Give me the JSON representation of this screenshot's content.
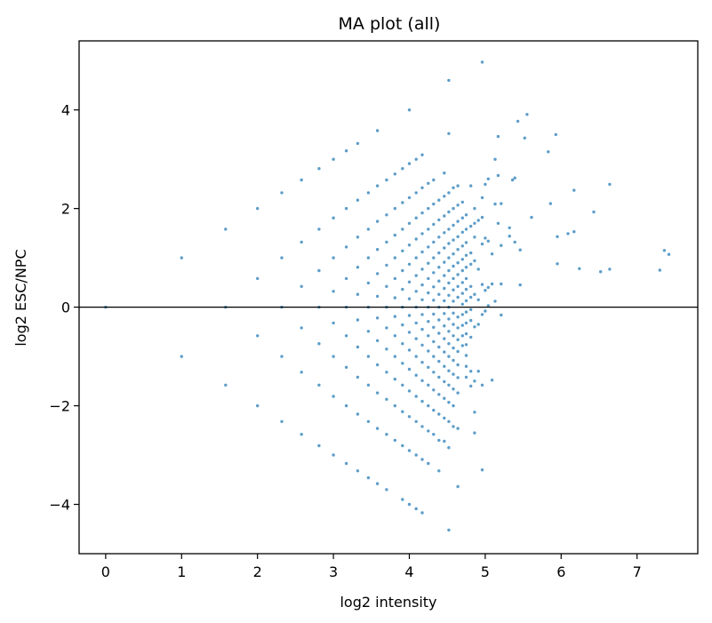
{
  "chart_data": {
    "type": "scatter",
    "title": "MA plot (all)",
    "xlabel": "log2 intensity",
    "ylabel": "log2 ESC/NPC",
    "xlim": [
      -0.35,
      7.8
    ],
    "ylim": [
      -5.0,
      5.4
    ],
    "xticks": [
      0,
      1,
      2,
      3,
      4,
      5,
      6,
      7
    ],
    "yticks": [
      -4,
      -2,
      0,
      2,
      4
    ],
    "xtick_labels": [
      "0",
      "1",
      "2",
      "3",
      "4",
      "5",
      "6",
      "7"
    ],
    "ytick_labels": [
      "−4",
      "−2",
      "0",
      "2",
      "4"
    ],
    "reference_line": {
      "y": 0,
      "color": "#000000"
    },
    "marker_color": "#1f77b4",
    "grid": false,
    "legend": "none",
    "points": [
      [
        0.0,
        0.0
      ],
      [
        1.0,
        1.0
      ],
      [
        1.0,
        -1.0
      ],
      [
        1.58,
        1.58
      ],
      [
        1.58,
        0.0
      ],
      [
        1.58,
        -1.58
      ],
      [
        2.0,
        2.0
      ],
      [
        2.0,
        0.58
      ],
      [
        2.0,
        -0.58
      ],
      [
        2.0,
        -2.0
      ],
      [
        2.32,
        2.32
      ],
      [
        2.32,
        1.0
      ],
      [
        2.32,
        0.0
      ],
      [
        2.32,
        -1.0
      ],
      [
        2.32,
        -2.32
      ],
      [
        2.58,
        2.58
      ],
      [
        2.58,
        1.32
      ],
      [
        2.58,
        0.42
      ],
      [
        2.58,
        -0.42
      ],
      [
        2.58,
        -1.32
      ],
      [
        2.58,
        -2.58
      ],
      [
        2.81,
        2.81
      ],
      [
        2.81,
        1.58
      ],
      [
        2.81,
        0.74
      ],
      [
        2.81,
        0.0
      ],
      [
        2.81,
        -0.74
      ],
      [
        2.81,
        -1.58
      ],
      [
        2.81,
        -2.81
      ],
      [
        3.0,
        3.0
      ],
      [
        3.0,
        1.81
      ],
      [
        3.0,
        1.0
      ],
      [
        3.0,
        0.32
      ],
      [
        3.0,
        -0.32
      ],
      [
        3.0,
        -1.0
      ],
      [
        3.0,
        -1.81
      ],
      [
        3.0,
        -3.0
      ],
      [
        3.17,
        3.17
      ],
      [
        3.17,
        2.0
      ],
      [
        3.17,
        1.22
      ],
      [
        3.17,
        0.58
      ],
      [
        3.17,
        0.0
      ],
      [
        3.17,
        -0.58
      ],
      [
        3.17,
        -1.22
      ],
      [
        3.17,
        -2.0
      ],
      [
        3.17,
        -3.17
      ],
      [
        3.32,
        3.32
      ],
      [
        3.32,
        2.17
      ],
      [
        3.32,
        1.42
      ],
      [
        3.32,
        0.81
      ],
      [
        3.32,
        0.26
      ],
      [
        3.32,
        -0.26
      ],
      [
        3.32,
        -0.81
      ],
      [
        3.32,
        -1.42
      ],
      [
        3.32,
        -2.17
      ],
      [
        3.32,
        -3.32
      ],
      [
        3.46,
        2.32
      ],
      [
        3.46,
        1.58
      ],
      [
        3.46,
        1.0
      ],
      [
        3.46,
        0.49
      ],
      [
        3.46,
        0.0
      ],
      [
        3.46,
        -0.49
      ],
      [
        3.46,
        -1.0
      ],
      [
        3.46,
        -1.58
      ],
      [
        3.46,
        -2.32
      ],
      [
        3.46,
        -3.46
      ],
      [
        3.58,
        3.58
      ],
      [
        3.58,
        2.46
      ],
      [
        3.58,
        1.74
      ],
      [
        3.58,
        1.17
      ],
      [
        3.58,
        0.68
      ],
      [
        3.58,
        0.22
      ],
      [
        3.58,
        -0.22
      ],
      [
        3.58,
        -0.68
      ],
      [
        3.58,
        -1.17
      ],
      [
        3.58,
        -1.74
      ],
      [
        3.58,
        -2.46
      ],
      [
        3.58,
        -3.58
      ],
      [
        3.7,
        2.58
      ],
      [
        3.7,
        1.87
      ],
      [
        3.7,
        1.32
      ],
      [
        3.7,
        0.85
      ],
      [
        3.7,
        0.42
      ],
      [
        3.7,
        0.0
      ],
      [
        3.7,
        -0.42
      ],
      [
        3.7,
        -0.85
      ],
      [
        3.7,
        -1.32
      ],
      [
        3.7,
        -1.87
      ],
      [
        3.7,
        -2.58
      ],
      [
        3.7,
        -3.7
      ],
      [
        3.81,
        2.7
      ],
      [
        3.81,
        2.0
      ],
      [
        3.81,
        1.46
      ],
      [
        3.81,
        1.0
      ],
      [
        3.81,
        0.58
      ],
      [
        3.81,
        0.19
      ],
      [
        3.81,
        -0.19
      ],
      [
        3.81,
        -0.58
      ],
      [
        3.81,
        -1.0
      ],
      [
        3.81,
        -1.46
      ],
      [
        3.81,
        -2.0
      ],
      [
        3.81,
        -2.7
      ],
      [
        3.91,
        2.81
      ],
      [
        3.91,
        2.12
      ],
      [
        3.91,
        1.58
      ],
      [
        3.91,
        1.14
      ],
      [
        3.91,
        0.74
      ],
      [
        3.91,
        0.36
      ],
      [
        3.91,
        0.0
      ],
      [
        3.91,
        -0.36
      ],
      [
        3.91,
        -0.74
      ],
      [
        3.91,
        -1.14
      ],
      [
        3.91,
        -1.58
      ],
      [
        3.91,
        -2.12
      ],
      [
        3.91,
        -2.81
      ],
      [
        3.91,
        -3.9
      ],
      [
        4.0,
        4.0
      ],
      [
        4.0,
        2.91
      ],
      [
        4.0,
        2.22
      ],
      [
        4.0,
        1.7
      ],
      [
        4.0,
        1.26
      ],
      [
        4.0,
        0.87
      ],
      [
        4.0,
        0.51
      ],
      [
        4.0,
        0.17
      ],
      [
        4.0,
        -0.17
      ],
      [
        4.0,
        -0.51
      ],
      [
        4.0,
        -0.87
      ],
      [
        4.0,
        -1.26
      ],
      [
        4.0,
        -1.7
      ],
      [
        4.0,
        -2.22
      ],
      [
        4.0,
        -2.91
      ],
      [
        4.0,
        -4.0
      ],
      [
        4.09,
        3.0
      ],
      [
        4.09,
        2.32
      ],
      [
        4.09,
        1.81
      ],
      [
        4.09,
        1.38
      ],
      [
        4.09,
        1.0
      ],
      [
        4.09,
        0.64
      ],
      [
        4.09,
        0.32
      ],
      [
        4.09,
        0.0
      ],
      [
        4.09,
        -0.32
      ],
      [
        4.09,
        -0.64
      ],
      [
        4.09,
        -1.0
      ],
      [
        4.09,
        -1.38
      ],
      [
        4.09,
        -1.81
      ],
      [
        4.09,
        -2.32
      ],
      [
        4.09,
        -3.0
      ],
      [
        4.09,
        -4.09
      ],
      [
        4.17,
        3.09
      ],
      [
        4.17,
        2.42
      ],
      [
        4.17,
        1.91
      ],
      [
        4.17,
        1.49
      ],
      [
        4.17,
        1.12
      ],
      [
        4.17,
        0.77
      ],
      [
        4.17,
        0.45
      ],
      [
        4.17,
        0.15
      ],
      [
        4.17,
        -0.15
      ],
      [
        4.17,
        -0.45
      ],
      [
        4.17,
        -0.77
      ],
      [
        4.17,
        -1.12
      ],
      [
        4.17,
        -1.49
      ],
      [
        4.17,
        -1.91
      ],
      [
        4.17,
        -2.42
      ],
      [
        4.17,
        -3.09
      ],
      [
        4.17,
        -4.17
      ],
      [
        4.25,
        2.51
      ],
      [
        4.25,
        2.0
      ],
      [
        4.25,
        1.58
      ],
      [
        4.25,
        1.22
      ],
      [
        4.25,
        0.89
      ],
      [
        4.25,
        0.58
      ],
      [
        4.25,
        0.29
      ],
      [
        4.25,
        0.0
      ],
      [
        4.25,
        -0.29
      ],
      [
        4.25,
        -0.58
      ],
      [
        4.25,
        -0.89
      ],
      [
        4.25,
        -1.22
      ],
      [
        4.25,
        -1.58
      ],
      [
        4.25,
        -2.0
      ],
      [
        4.25,
        -2.51
      ],
      [
        4.25,
        -3.17
      ],
      [
        4.32,
        2.58
      ],
      [
        4.32,
        2.09
      ],
      [
        4.32,
        1.68
      ],
      [
        4.32,
        1.32
      ],
      [
        4.32,
        1.0
      ],
      [
        4.32,
        0.7
      ],
      [
        4.32,
        0.41
      ],
      [
        4.32,
        0.14
      ],
      [
        4.32,
        -0.14
      ],
      [
        4.32,
        -0.41
      ],
      [
        4.32,
        -0.7
      ],
      [
        4.32,
        -1.0
      ],
      [
        4.32,
        -1.32
      ],
      [
        4.32,
        -1.68
      ],
      [
        4.32,
        -2.09
      ],
      [
        4.32,
        -2.58
      ],
      [
        4.39,
        2.17
      ],
      [
        4.39,
        1.77
      ],
      [
        4.39,
        1.42
      ],
      [
        4.39,
        1.1
      ],
      [
        4.39,
        0.81
      ],
      [
        4.39,
        0.53
      ],
      [
        4.39,
        0.26
      ],
      [
        4.39,
        0.0
      ],
      [
        4.39,
        -0.26
      ],
      [
        4.39,
        -0.53
      ],
      [
        4.39,
        -0.81
      ],
      [
        4.39,
        -1.1
      ],
      [
        4.39,
        -1.42
      ],
      [
        4.39,
        -1.77
      ],
      [
        4.39,
        -2.17
      ],
      [
        4.39,
        -2.7
      ],
      [
        4.39,
        -3.32
      ],
      [
        4.46,
        2.72
      ],
      [
        4.46,
        2.25
      ],
      [
        4.46,
        1.85
      ],
      [
        4.46,
        1.51
      ],
      [
        4.46,
        1.2
      ],
      [
        4.46,
        0.91
      ],
      [
        4.46,
        0.64
      ],
      [
        4.46,
        0.38
      ],
      [
        4.46,
        0.13
      ],
      [
        4.46,
        -0.13
      ],
      [
        4.46,
        -0.38
      ],
      [
        4.46,
        -0.64
      ],
      [
        4.46,
        -0.91
      ],
      [
        4.46,
        -1.2
      ],
      [
        4.46,
        -1.51
      ],
      [
        4.46,
        -1.85
      ],
      [
        4.46,
        -2.25
      ],
      [
        4.46,
        -2.72
      ],
      [
        4.52,
        4.6
      ],
      [
        4.52,
        3.52
      ],
      [
        4.52,
        2.32
      ],
      [
        4.52,
        1.93
      ],
      [
        4.52,
        1.58
      ],
      [
        4.52,
        1.29
      ],
      [
        4.52,
        1.0
      ],
      [
        4.52,
        0.74
      ],
      [
        4.52,
        0.49
      ],
      [
        4.52,
        0.24
      ],
      [
        4.52,
        0.0
      ],
      [
        4.52,
        -0.24
      ],
      [
        4.52,
        -0.49
      ],
      [
        4.52,
        -0.74
      ],
      [
        4.52,
        -1.0
      ],
      [
        4.52,
        -1.29
      ],
      [
        4.52,
        -1.58
      ],
      [
        4.52,
        -1.93
      ],
      [
        4.52,
        -2.32
      ],
      [
        4.52,
        -2.85
      ],
      [
        4.52,
        -4.52
      ],
      [
        4.58,
        2.42
      ],
      [
        4.58,
        2.0
      ],
      [
        4.58,
        1.66
      ],
      [
        4.58,
        1.36
      ],
      [
        4.58,
        1.08
      ],
      [
        4.58,
        0.83
      ],
      [
        4.58,
        0.58
      ],
      [
        4.58,
        0.35
      ],
      [
        4.58,
        0.12
      ],
      [
        4.58,
        -0.12
      ],
      [
        4.58,
        -0.35
      ],
      [
        4.58,
        -0.58
      ],
      [
        4.58,
        -0.83
      ],
      [
        4.58,
        -1.08
      ],
      [
        4.58,
        -1.36
      ],
      [
        4.58,
        -1.66
      ],
      [
        4.58,
        -2.0
      ],
      [
        4.58,
        -2.42
      ],
      [
        4.64,
        2.46
      ],
      [
        4.64,
        2.07
      ],
      [
        4.64,
        1.74
      ],
      [
        4.64,
        1.43
      ],
      [
        4.64,
        1.17
      ],
      [
        4.64,
        0.9
      ],
      [
        4.64,
        0.66
      ],
      [
        4.64,
        0.42
      ],
      [
        4.64,
        0.2
      ],
      [
        4.64,
        -0.2
      ],
      [
        4.64,
        -0.42
      ],
      [
        4.64,
        -0.66
      ],
      [
        4.64,
        -0.9
      ],
      [
        4.64,
        -1.17
      ],
      [
        4.64,
        -1.43
      ],
      [
        4.64,
        -1.74
      ],
      [
        4.64,
        -2.46
      ],
      [
        4.64,
        -3.64
      ],
      [
        4.7,
        2.13
      ],
      [
        4.7,
        1.81
      ],
      [
        4.7,
        1.52
      ],
      [
        4.7,
        1.24
      ],
      [
        4.7,
        0.97
      ],
      [
        4.7,
        0.74
      ],
      [
        4.7,
        0.5
      ],
      [
        4.7,
        0.28
      ],
      [
        4.7,
        0.06
      ],
      [
        4.7,
        -0.15
      ],
      [
        4.7,
        -0.37
      ],
      [
        4.7,
        -0.58
      ],
      [
        4.7,
        -0.78
      ],
      [
        4.75,
        1.87
      ],
      [
        4.75,
        1.58
      ],
      [
        4.75,
        1.31
      ],
      [
        4.75,
        1.05
      ],
      [
        4.75,
        0.81
      ],
      [
        4.75,
        0.58
      ],
      [
        4.75,
        0.36
      ],
      [
        4.75,
        0.13
      ],
      [
        4.75,
        -0.1
      ],
      [
        4.75,
        -0.32
      ],
      [
        4.75,
        -0.54
      ],
      [
        4.75,
        -0.76
      ],
      [
        4.75,
        -0.98
      ],
      [
        4.75,
        -1.2
      ],
      [
        4.75,
        -1.42
      ],
      [
        4.81,
        2.46
      ],
      [
        4.81,
        1.64
      ],
      [
        4.81,
        1.1
      ],
      [
        4.81,
        0.87
      ],
      [
        4.81,
        0.42
      ],
      [
        4.81,
        0.2
      ],
      [
        4.81,
        -0.05
      ],
      [
        4.81,
        -0.27
      ],
      [
        4.81,
        -0.61
      ],
      [
        4.81,
        -1.3
      ],
      [
        4.81,
        -1.6
      ],
      [
        4.86,
        2.0
      ],
      [
        4.86,
        1.7
      ],
      [
        4.86,
        1.42
      ],
      [
        4.86,
        0.94
      ],
      [
        4.86,
        0.26
      ],
      [
        4.86,
        -0.4
      ],
      [
        4.86,
        -1.5
      ],
      [
        4.86,
        -2.13
      ],
      [
        4.86,
        -2.55
      ],
      [
        4.91,
        1.76
      ],
      [
        4.91,
        0.77
      ],
      [
        4.91,
        0.15
      ],
      [
        4.91,
        -0.35
      ],
      [
        4.91,
        -1.3
      ],
      [
        4.96,
        4.97
      ],
      [
        4.96,
        2.22
      ],
      [
        4.96,
        1.82
      ],
      [
        4.96,
        1.28
      ],
      [
        4.96,
        0.46
      ],
      [
        4.96,
        -0.15
      ],
      [
        4.96,
        -1.58
      ],
      [
        4.96,
        -3.3
      ],
      [
        5.0,
        2.49
      ],
      [
        5.0,
        1.4
      ],
      [
        5.0,
        0.34
      ],
      [
        5.0,
        -0.08
      ],
      [
        5.04,
        2.6
      ],
      [
        5.04,
        1.34
      ],
      [
        5.04,
        0.4
      ],
      [
        5.04,
        0.03
      ],
      [
        5.09,
        1.08
      ],
      [
        5.09,
        0.47
      ],
      [
        5.09,
        -1.48
      ],
      [
        5.13,
        3.0
      ],
      [
        5.13,
        2.09
      ],
      [
        5.13,
        0.12
      ],
      [
        5.17,
        3.46
      ],
      [
        5.17,
        2.67
      ],
      [
        5.17,
        1.7
      ],
      [
        5.21,
        2.1
      ],
      [
        5.21,
        1.25
      ],
      [
        5.21,
        0.47
      ],
      [
        5.21,
        -0.16
      ],
      [
        5.32,
        1.61
      ],
      [
        5.32,
        1.44
      ],
      [
        5.36,
        2.58
      ],
      [
        5.39,
        2.62
      ],
      [
        5.39,
        1.32
      ],
      [
        5.43,
        3.77
      ],
      [
        5.46,
        1.16
      ],
      [
        5.46,
        0.45
      ],
      [
        5.52,
        3.43
      ],
      [
        5.55,
        3.91
      ],
      [
        5.61,
        1.82
      ],
      [
        5.83,
        3.15
      ],
      [
        5.86,
        2.1
      ],
      [
        5.93,
        3.5
      ],
      [
        5.95,
        1.43
      ],
      [
        5.95,
        0.88
      ],
      [
        6.09,
        1.49
      ],
      [
        6.17,
        2.37
      ],
      [
        6.17,
        1.53
      ],
      [
        6.24,
        0.78
      ],
      [
        6.43,
        1.93
      ],
      [
        6.52,
        0.72
      ],
      [
        6.64,
        2.49
      ],
      [
        6.64,
        0.77
      ],
      [
        7.3,
        0.75
      ],
      [
        7.36,
        1.15
      ],
      [
        7.42,
        1.07
      ]
    ]
  }
}
